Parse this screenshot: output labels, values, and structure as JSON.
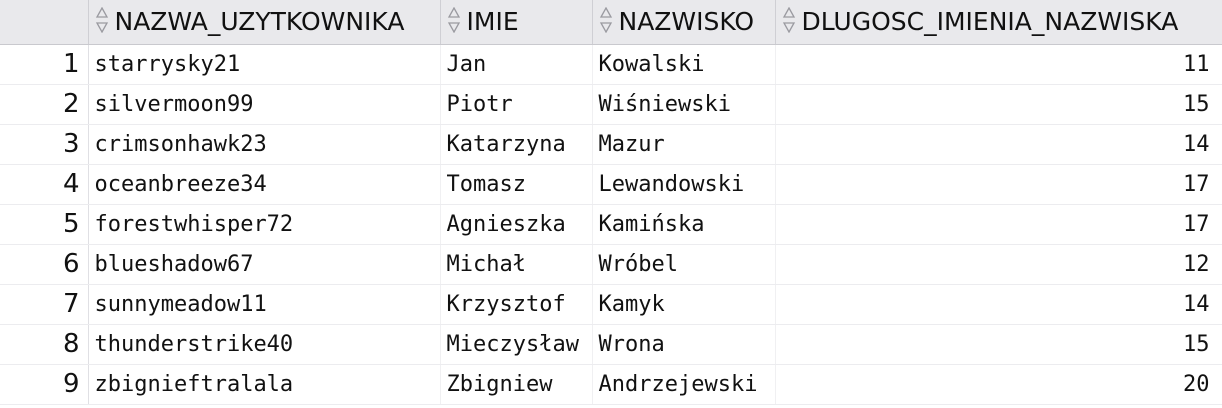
{
  "grid": {
    "columns": [
      {
        "label": "NAZWA_UZYTKOWNIKA",
        "icon": "sort-arrows-icon"
      },
      {
        "label": "IMIE",
        "icon": "sort-arrows-icon"
      },
      {
        "label": "NAZWISKO",
        "icon": "sort-arrows-icon"
      },
      {
        "label": "DLUGOSC_IMIENIA_NAZWISKA",
        "icon": "sort-arrows-icon"
      }
    ],
    "rows": [
      {
        "n": "1",
        "user": "starrysky21",
        "imie": "Jan",
        "nazwisko": "Kowalski",
        "len": "11"
      },
      {
        "n": "2",
        "user": "silvermoon99",
        "imie": "Piotr",
        "nazwisko": "Wiśniewski",
        "len": "15"
      },
      {
        "n": "3",
        "user": "crimsonhawk23",
        "imie": "Katarzyna",
        "nazwisko": "Mazur",
        "len": "14"
      },
      {
        "n": "4",
        "user": "oceanbreeze34",
        "imie": "Tomasz",
        "nazwisko": "Lewandowski",
        "len": "17"
      },
      {
        "n": "5",
        "user": "forestwhisper72",
        "imie": "Agnieszka",
        "nazwisko": "Kamińska",
        "len": "17"
      },
      {
        "n": "6",
        "user": "blueshadow67",
        "imie": "Michał",
        "nazwisko": "Wróbel",
        "len": "12"
      },
      {
        "n": "7",
        "user": "sunnymeadow11",
        "imie": "Krzysztof",
        "nazwisko": "Kamyk",
        "len": "14"
      },
      {
        "n": "8",
        "user": "thunderstrike40",
        "imie": "Mieczysław",
        "nazwisko": "Wrona",
        "len": "15"
      },
      {
        "n": "9",
        "user": "zbignieftralala",
        "imie": "Zbigniew",
        "nazwisko": "Andrzejewski",
        "len": "20"
      }
    ]
  }
}
